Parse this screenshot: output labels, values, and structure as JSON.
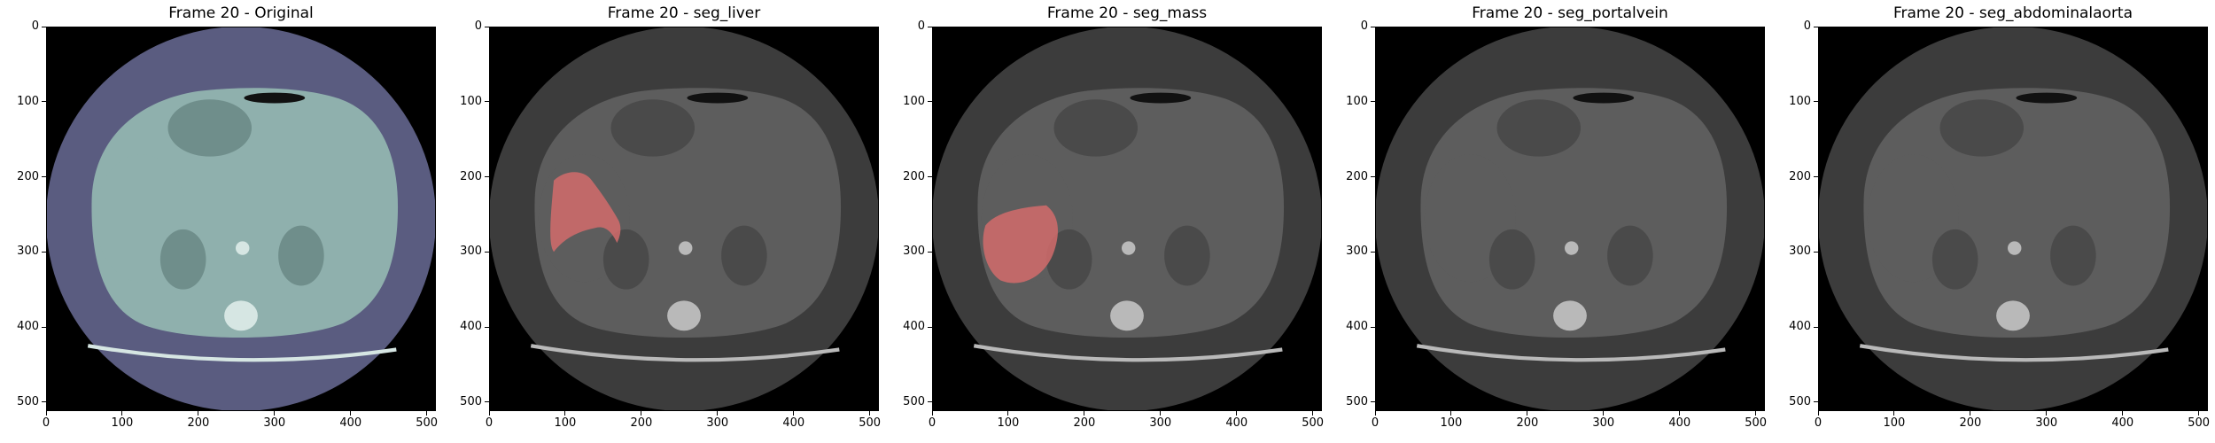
{
  "panels": [
    {
      "title": "Frame 20 - Original",
      "style": "color",
      "mask": "none"
    },
    {
      "title": "Frame 20 - seg_liver",
      "style": "gray",
      "mask": "liver"
    },
    {
      "title": "Frame 20 - seg_mass",
      "style": "gray",
      "mask": "mass"
    },
    {
      "title": "Frame 20 - seg_portalvein",
      "style": "gray",
      "mask": "none"
    },
    {
      "title": "Frame 20 - seg_abdominalaorta",
      "style": "gray",
      "mask": "none"
    }
  ],
  "axes": {
    "range": [
      0,
      512
    ],
    "x_ticks": [
      "0",
      "100",
      "200",
      "300",
      "400",
      "500"
    ],
    "y_ticks": [
      "0",
      "100",
      "200",
      "300",
      "400",
      "500"
    ]
  },
  "colors": {
    "mask": "#d26b6b",
    "color_body": "#8fb0ad",
    "color_fov": "#5a5c80",
    "gray_body": "#5d5d5d",
    "gray_fov": "#3c3c3c"
  }
}
